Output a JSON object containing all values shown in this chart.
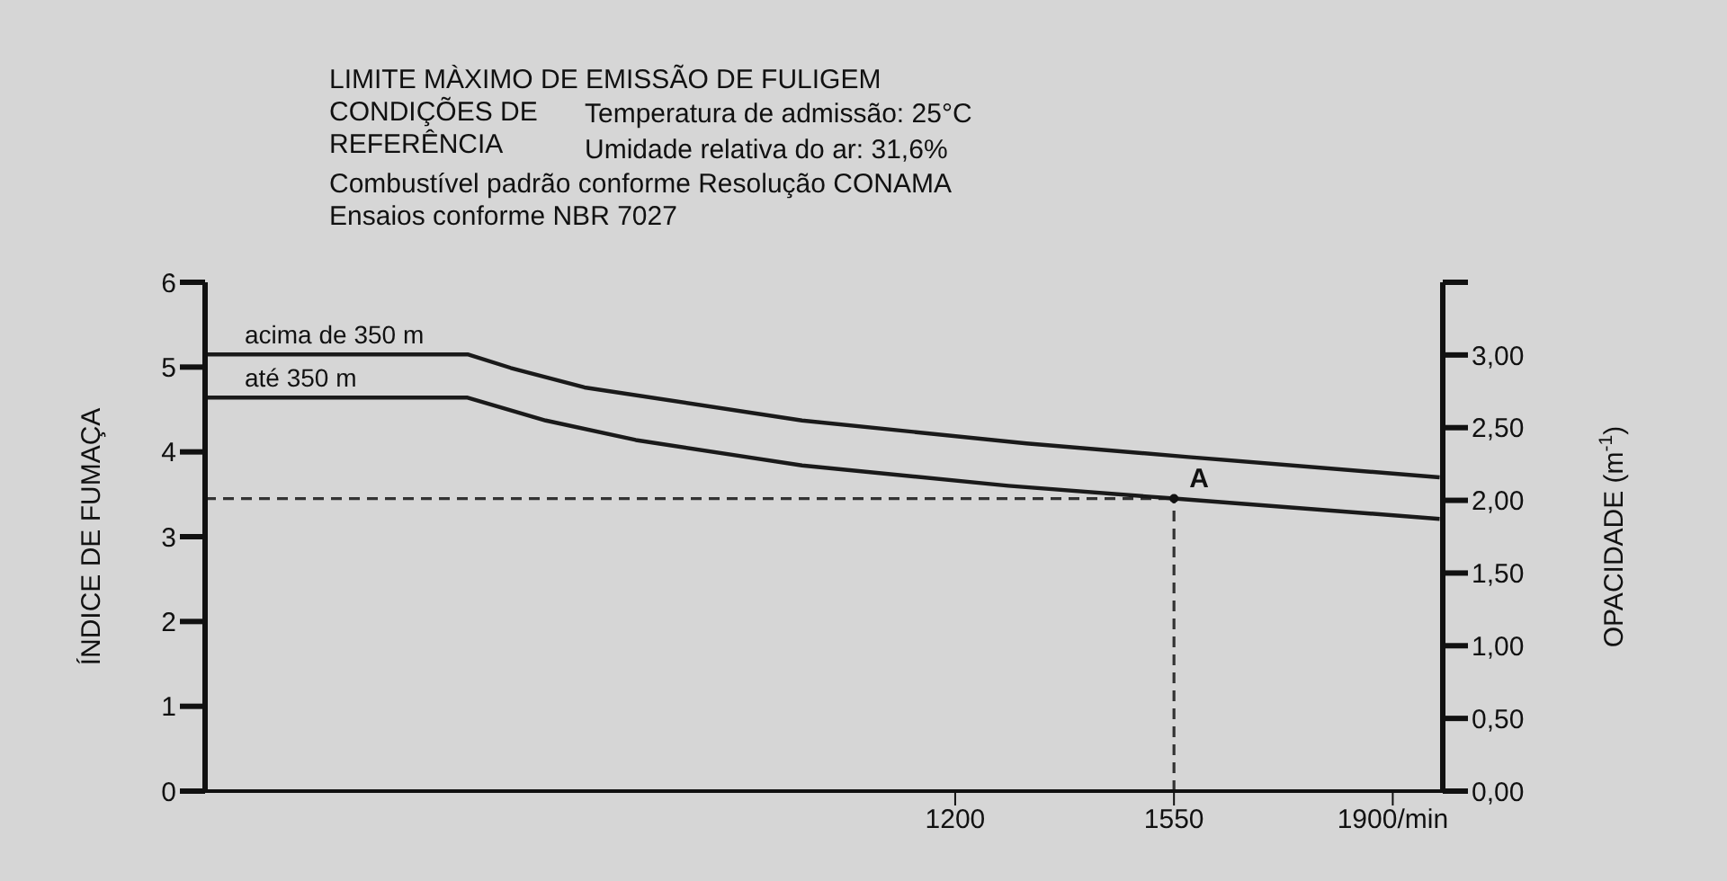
{
  "chart_data": {
    "type": "line",
    "title": "LIMITE MÀXIMO DE EMISSÃO DE FULIGEM",
    "annotations": [
      "CONDIÇÕES DE REFERÊNCIA",
      "Temperatura de admissão: 25°C",
      "Umidade relativa do ar: 31,6%",
      "Combustível padrão conforme Resolução CONAMA",
      "Ensaios conforme NBR 7027",
      {
        "text": "A",
        "x": 1550,
        "y": 3.45
      }
    ],
    "ylabel": "ÍNDICE DE FUMAÇA",
    "y2label": "OPACIDADE (m$^{-1}$)",
    "xlim": [
      0,
      1980
    ],
    "xticks": [
      1200,
      1550,
      {
        "value": 1900,
        "label": "1900/min"
      }
    ],
    "ylim": [
      0,
      6
    ],
    "yticks": [
      0,
      1,
      2,
      3,
      4,
      5,
      6
    ],
    "y2lim": [
      0,
      3.5
    ],
    "y2ticks": [
      {
        "value": 0,
        "label": "0,00"
      },
      {
        "value": 0.5,
        "label": "0,50"
      },
      {
        "value": 1,
        "label": "1,00"
      },
      {
        "value": 1.5,
        "label": "1,50"
      },
      {
        "value": 2,
        "label": "2,00"
      },
      {
        "value": 2.5,
        "label": "2,50"
      },
      {
        "value": 3,
        "label": "3,00"
      },
      {
        "value": 3.5,
        "label": null
      }
    ],
    "series": [
      {
        "name": "acima de 350 m",
        "color": "#1a1a1a",
        "x": [
          0,
          420,
          489,
          607,
          955,
          1314,
          1573,
          1975
        ],
        "values": [
          5.15,
          5.15,
          4.99,
          4.76,
          4.37,
          4.1,
          3.94,
          3.7
        ]
      },
      {
        "name": "até 350 m",
        "color": "#1a1a1a",
        "x": [
          0,
          420,
          545,
          689,
          955,
          1285,
          1550,
          1975
        ],
        "values": [
          4.64,
          4.64,
          4.37,
          4.14,
          3.84,
          3.6,
          3.45,
          3.21
        ]
      }
    ],
    "ref_lines": [
      {
        "axis": "y",
        "value": 3.45,
        "line_style": "dashed",
        "color": "#333333"
      },
      {
        "axis": "x",
        "value": 1550,
        "line_style": "dashed",
        "color": "#333333"
      }
    ],
    "legend": false,
    "grid": false,
    "marker": "none",
    "line_style": "solid"
  }
}
